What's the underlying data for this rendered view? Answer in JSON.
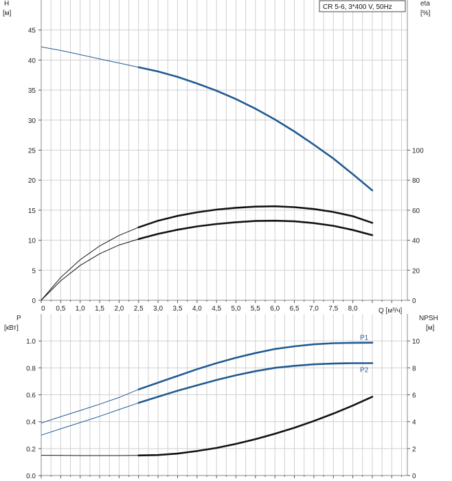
{
  "title": "CR 5-6, 3*400 V, 50Hz",
  "colors": {
    "blue": "#1f5a92",
    "black": "#111111",
    "grid": "#cfcfcf",
    "frame": "#8a8a8a"
  },
  "chart_data": [
    {
      "type": "line",
      "xlabel": "Q [м³/ч]",
      "ylabel": "H\n[м]",
      "y2label": "eta\n[%]",
      "xlim": [
        0,
        9.4
      ],
      "ylim": [
        0,
        50
      ],
      "y2lim": [
        0,
        200
      ],
      "xticks": [
        "0",
        "0,5",
        "1,0",
        "1,5",
        "2,0",
        "2,5",
        "3,0",
        "3,5",
        "4,0",
        "4,5",
        "5,0",
        "5,5",
        "6,0",
        "6,5",
        "7,0",
        "7,5",
        "8,0"
      ],
      "yticks": [
        "0",
        "5",
        "10",
        "15",
        "20",
        "25",
        "30",
        "35",
        "40",
        "45"
      ],
      "y2ticks": [
        "0",
        "20",
        "40",
        "60",
        "80",
        "100"
      ],
      "grid": true,
      "series": [
        {
          "axis": "left",
          "color": "#1f5a92",
          "points": [
            [
              0,
              42.2
            ],
            [
              0.5,
              41.6
            ],
            [
              1.0,
              40.9
            ],
            [
              1.5,
              40.2
            ],
            [
              2.0,
              39.5
            ],
            [
              2.5,
              38.8
            ],
            [
              3.0,
              38.1
            ],
            [
              3.5,
              37.2
            ],
            [
              4.0,
              36.1
            ],
            [
              4.5,
              34.9
            ],
            [
              5.0,
              33.5
            ],
            [
              5.5,
              31.9
            ],
            [
              6.0,
              30.1
            ],
            [
              6.5,
              28.1
            ],
            [
              7.0,
              25.9
            ],
            [
              7.5,
              23.6
            ],
            [
              8.0,
              21.0
            ],
            [
              8.5,
              18.3
            ]
          ],
          "bold_from": 2.5
        },
        {
          "axis": "right",
          "color": "#111111",
          "points": [
            [
              0,
              0
            ],
            [
              0.5,
              15.2
            ],
            [
              1.0,
              27.0
            ],
            [
              1.5,
              36.2
            ],
            [
              2.0,
              43.2
            ],
            [
              2.5,
              48.6
            ],
            [
              3.0,
              53.0
            ],
            [
              3.5,
              56.2
            ],
            [
              4.0,
              58.6
            ],
            [
              4.5,
              60.4
            ],
            [
              5.0,
              61.6
            ],
            [
              5.5,
              62.4
            ],
            [
              6.0,
              62.6
            ],
            [
              6.5,
              62.0
            ],
            [
              7.0,
              60.8
            ],
            [
              7.5,
              58.8
            ],
            [
              8.0,
              56.0
            ],
            [
              8.5,
              51.6
            ]
          ],
          "bold_from": 2.5
        },
        {
          "axis": "right",
          "color": "#111111",
          "points": [
            [
              0,
              0
            ],
            [
              0.5,
              13.0
            ],
            [
              1.0,
              23.2
            ],
            [
              1.5,
              31.0
            ],
            [
              2.0,
              36.8
            ],
            [
              2.5,
              40.8
            ],
            [
              3.0,
              44.2
            ],
            [
              3.5,
              47.0
            ],
            [
              4.0,
              49.2
            ],
            [
              4.5,
              50.8
            ],
            [
              5.0,
              52.0
            ],
            [
              5.5,
              52.8
            ],
            [
              6.0,
              53.0
            ],
            [
              6.5,
              52.6
            ],
            [
              7.0,
              51.4
            ],
            [
              7.5,
              49.6
            ],
            [
              8.0,
              46.8
            ],
            [
              8.5,
              43.4
            ]
          ],
          "bold_from": 2.5
        }
      ]
    },
    {
      "type": "line",
      "xlabel": "",
      "ylabel": "P\n[кВт]",
      "y2label": "NPSH\n[м]",
      "xlim": [
        0,
        9.4
      ],
      "ylim": [
        0,
        1.2
      ],
      "y2lim": [
        0,
        12
      ],
      "yticks": [
        "0.0",
        "0.2",
        "0.4",
        "0.6",
        "0.8",
        "1.0"
      ],
      "y2ticks": [
        "0",
        "2",
        "4",
        "6",
        "8",
        "10"
      ],
      "grid": true,
      "series": [
        {
          "name": "P1",
          "axis": "left",
          "color": "#1f5a92",
          "points": [
            [
              0,
              0.39
            ],
            [
              0.5,
              0.437
            ],
            [
              1.0,
              0.483
            ],
            [
              1.5,
              0.53
            ],
            [
              2.0,
              0.58
            ],
            [
              2.5,
              0.64
            ],
            [
              3.0,
              0.69
            ],
            [
              3.5,
              0.74
            ],
            [
              4.0,
              0.79
            ],
            [
              4.5,
              0.835
            ],
            [
              5.0,
              0.875
            ],
            [
              5.5,
              0.91
            ],
            [
              6.0,
              0.94
            ],
            [
              6.5,
              0.96
            ],
            [
              7.0,
              0.975
            ],
            [
              7.5,
              0.983
            ],
            [
              8.0,
              0.986
            ],
            [
              8.5,
              0.987
            ]
          ],
          "bold_from": 2.5
        },
        {
          "name": "P2",
          "axis": "left",
          "color": "#1f5a92",
          "points": [
            [
              0,
              0.3
            ],
            [
              0.5,
              0.347
            ],
            [
              1.0,
              0.393
            ],
            [
              1.5,
              0.44
            ],
            [
              2.0,
              0.49
            ],
            [
              2.5,
              0.54
            ],
            [
              3.0,
              0.585
            ],
            [
              3.5,
              0.63
            ],
            [
              4.0,
              0.67
            ],
            [
              4.5,
              0.71
            ],
            [
              5.0,
              0.745
            ],
            [
              5.5,
              0.775
            ],
            [
              6.0,
              0.8
            ],
            [
              6.5,
              0.815
            ],
            [
              7.0,
              0.826
            ],
            [
              7.5,
              0.832
            ],
            [
              8.0,
              0.835
            ],
            [
              8.5,
              0.835
            ]
          ],
          "bold_from": 2.5
        },
        {
          "axis": "right",
          "color": "#111111",
          "points": [
            [
              0,
              1.5
            ],
            [
              0.5,
              1.49
            ],
            [
              1.0,
              1.48
            ],
            [
              1.5,
              1.48
            ],
            [
              2.0,
              1.48
            ],
            [
              2.5,
              1.49
            ],
            [
              3.0,
              1.52
            ],
            [
              3.5,
              1.63
            ],
            [
              4.0,
              1.82
            ],
            [
              4.5,
              2.05
            ],
            [
              5.0,
              2.35
            ],
            [
              5.5,
              2.7
            ],
            [
              6.0,
              3.1
            ],
            [
              6.5,
              3.55
            ],
            [
              7.0,
              4.05
            ],
            [
              7.5,
              4.6
            ],
            [
              8.0,
              5.2
            ],
            [
              8.5,
              5.85
            ]
          ],
          "bold_from": 2.5
        }
      ]
    }
  ]
}
